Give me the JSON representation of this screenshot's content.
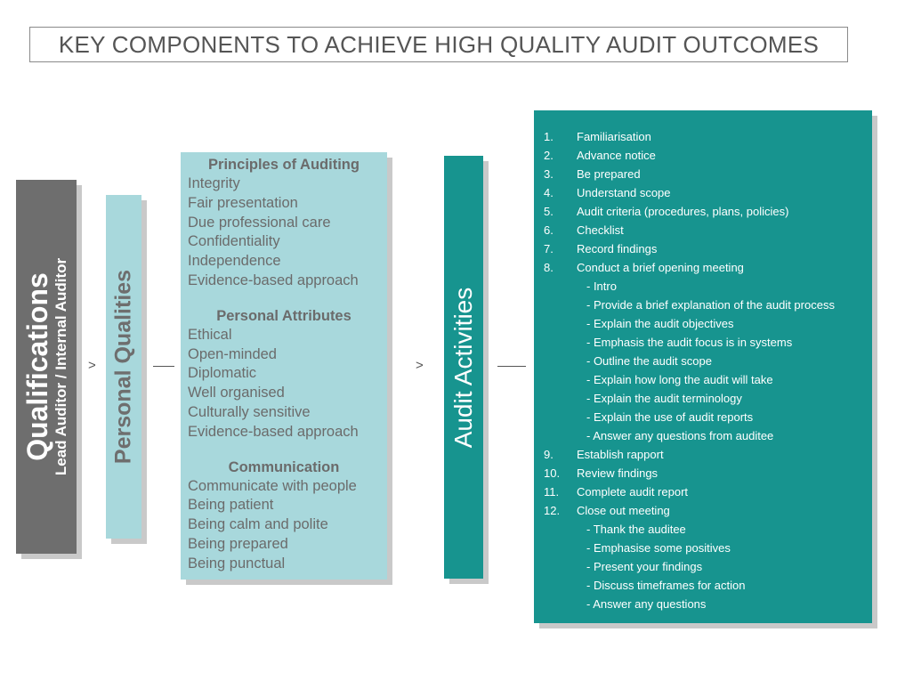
{
  "title": "KEY COMPONENTS TO ACHIEVE HIGH QUALITY AUDIT OUTCOMES",
  "qualifications": {
    "title": "Qualifications",
    "subtitle": "Lead Auditor / Internal Auditor"
  },
  "personal_qualities": {
    "title": "Personal Qualities"
  },
  "attributes": {
    "sections": [
      {
        "heading": "Principles of Auditing",
        "items": [
          "Integrity",
          "Fair presentation",
          "Due professional care",
          "Confidentiality",
          "Independence",
          "Evidence-based approach"
        ]
      },
      {
        "heading": "Personal Attributes",
        "items": [
          "Ethical",
          "Open-minded",
          "Diplomatic",
          "Well organised",
          "Culturally sensitive",
          "Evidence-based approach"
        ]
      },
      {
        "heading": "Communication",
        "items": [
          "Communicate with people",
          "Being patient",
          "Being calm and polite",
          "Being prepared",
          "Being punctual"
        ]
      }
    ]
  },
  "audit_activities": {
    "title": "Audit Activities"
  },
  "connectors": {
    "gt1": ">",
    "gt2": ">"
  },
  "activity_list": [
    {
      "num": "1.",
      "text": "Familiarisation"
    },
    {
      "num": "2.",
      "text": "Advance notice"
    },
    {
      "num": "3.",
      "text": "Be prepared"
    },
    {
      "num": "4.",
      "text": "Understand scope"
    },
    {
      "num": "5.",
      "text": "Audit criteria (procedures, plans, policies)"
    },
    {
      "num": "6.",
      "text": "Checklist"
    },
    {
      "num": "7.",
      "text": "Record findings"
    },
    {
      "num": "8.",
      "text": "Conduct a brief opening meeting"
    },
    {
      "sub": "- Intro"
    },
    {
      "sub": "- Provide a brief explanation of the audit process"
    },
    {
      "sub": "-  Explain the audit objectives"
    },
    {
      "sub": "- Emphasis the audit focus is in systems"
    },
    {
      "sub": "- Outline the audit scope"
    },
    {
      "sub": "- Explain how long the audit will take"
    },
    {
      "sub": "- Explain the audit terminology"
    },
    {
      "sub": "- Explain the use of audit reports"
    },
    {
      "sub": "- Answer any questions from auditee"
    },
    {
      "num": "9.",
      "text": "Establish rapport"
    },
    {
      "num": "10.",
      "text": "Review  findings"
    },
    {
      "num": "11.",
      "text": "Complete audit report"
    },
    {
      "num": "12.",
      "text": "Close out meeting"
    },
    {
      "sub": "- Thank the auditee"
    },
    {
      "sub": "- Emphasise some positives"
    },
    {
      "sub": "- Present your findings"
    },
    {
      "sub": "- Discuss timeframes for action"
    },
    {
      "sub": "- Answer any questions"
    }
  ]
}
